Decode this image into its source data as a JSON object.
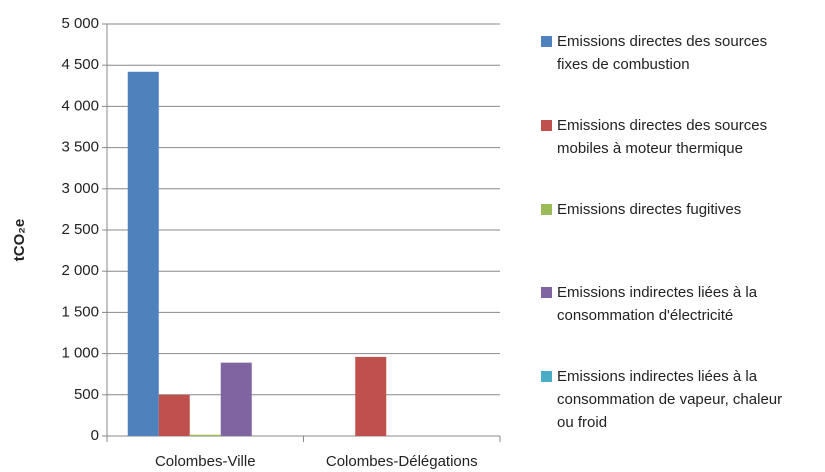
{
  "chart_data": {
    "type": "bar",
    "y_label": "tCO₂e",
    "categories": [
      "Colombes-Ville",
      "Colombes-Délégations"
    ],
    "series": [
      {
        "name": "Emissions directes des sources fixes de combustion",
        "color": "#4f81bd",
        "values": [
          4420,
          0
        ]
      },
      {
        "name": "Emissions directes des sources mobiles à moteur thermique",
        "color": "#c0504d",
        "values": [
          500,
          960
        ]
      },
      {
        "name": "Emissions directes fugitives",
        "color": "#9bbb59",
        "values": [
          15,
          0
        ]
      },
      {
        "name": "Emissions indirectes liées à la consommation d'électricité",
        "color": "#8064a2",
        "values": [
          890,
          0
        ]
      },
      {
        "name": "Emissions indirectes liées à la consommation de vapeur, chaleur ou froid",
        "color": "#4bacc6",
        "values": [
          0,
          0
        ]
      }
    ],
    "ylim": [
      0,
      5000
    ],
    "yticks": [
      0,
      500,
      {
        "value": 1000,
        "label": "1 000"
      },
      {
        "value": 1500,
        "label": "1 500"
      },
      {
        "value": 2000,
        "label": "2 000"
      },
      {
        "value": 2500,
        "label": "2 500"
      },
      {
        "value": 3000,
        "label": "3 000"
      },
      {
        "value": 3500,
        "label": "3 500"
      },
      {
        "value": 4000,
        "label": "4 000"
      },
      {
        "value": 4500,
        "label": "4 500"
      },
      {
        "value": 5000,
        "label": "5 000"
      }
    ],
    "grid": true,
    "legend": "right"
  }
}
